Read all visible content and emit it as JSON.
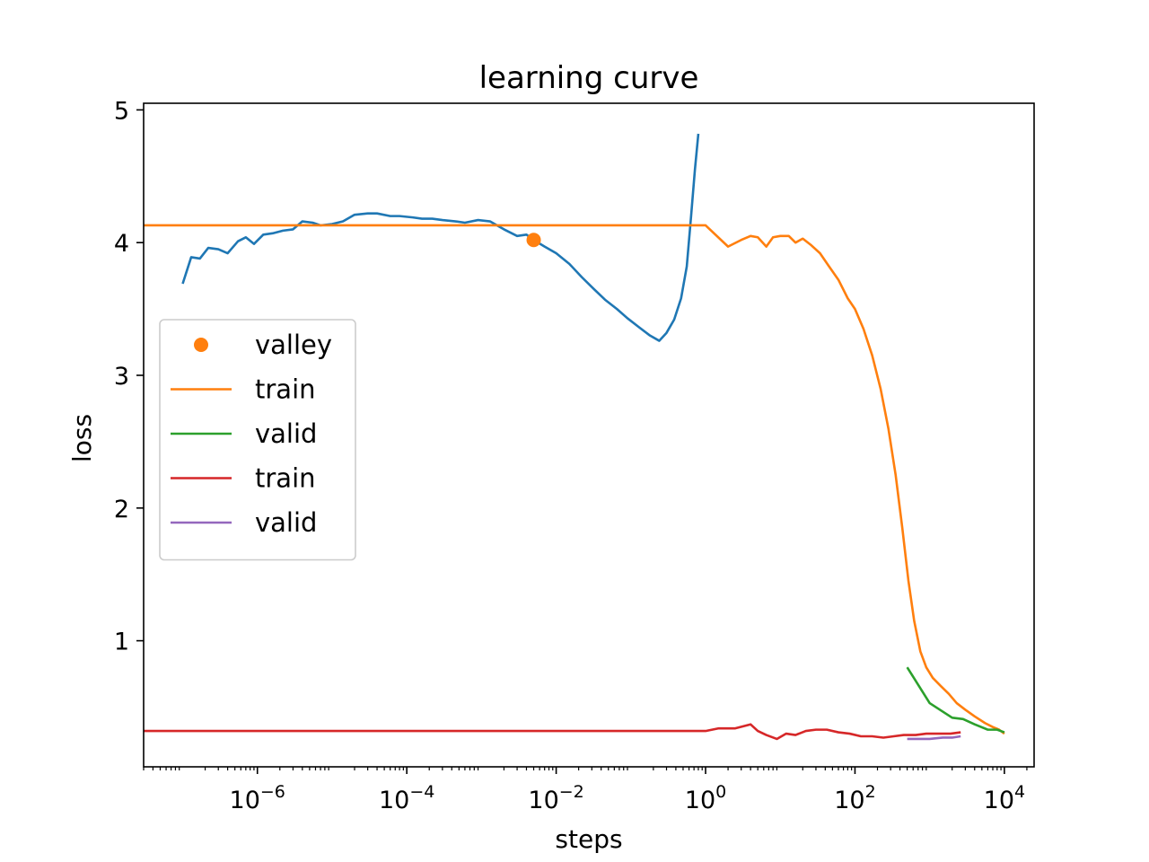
{
  "chart_data": {
    "type": "line",
    "title": "learning curve",
    "xlabel": "steps",
    "ylabel": "loss",
    "xscale": "log",
    "xlim": [
      3e-08,
      25000
    ],
    "ylim": [
      0.05,
      5.05
    ],
    "x_ticks": [
      {
        "value": 1e-06,
        "base": "10",
        "exp": "−6"
      },
      {
        "value": 0.0001,
        "base": "10",
        "exp": "−4"
      },
      {
        "value": 0.01,
        "base": "10",
        "exp": "−2"
      },
      {
        "value": 1,
        "base": "10",
        "exp": "0"
      },
      {
        "value": 100,
        "base": "10",
        "exp": "2"
      },
      {
        "value": 10000,
        "base": "10",
        "exp": "4"
      }
    ],
    "y_ticks": [
      {
        "value": 1,
        "label": "1"
      },
      {
        "value": 2,
        "label": "2"
      },
      {
        "value": 3,
        "label": "3"
      },
      {
        "value": 4,
        "label": "4"
      },
      {
        "value": 5,
        "label": "5"
      }
    ],
    "grid": false,
    "legend_position": "center-left",
    "series": [
      {
        "name": "",
        "kind": "line",
        "color": "#1f77b4",
        "points": [
          [
            1e-07,
            3.69
          ],
          [
            1.3e-07,
            3.89
          ],
          [
            1.7e-07,
            3.88
          ],
          [
            2.2e-07,
            3.96
          ],
          [
            3e-07,
            3.95
          ],
          [
            4e-07,
            3.92
          ],
          [
            5.5e-07,
            4.01
          ],
          [
            7e-07,
            4.04
          ],
          [
            9e-07,
            3.99
          ],
          [
            1.2e-06,
            4.06
          ],
          [
            1.6e-06,
            4.07
          ],
          [
            2.2e-06,
            4.09
          ],
          [
            3e-06,
            4.1
          ],
          [
            4e-06,
            4.16
          ],
          [
            5.5e-06,
            4.15
          ],
          [
            7e-06,
            4.13
          ],
          [
            1e-05,
            4.14
          ],
          [
            1.4e-05,
            4.16
          ],
          [
            2e-05,
            4.21
          ],
          [
            3e-05,
            4.22
          ],
          [
            4e-05,
            4.22
          ],
          [
            6e-05,
            4.2
          ],
          [
            8e-05,
            4.2
          ],
          [
            0.00012,
            4.19
          ],
          [
            0.00016,
            4.18
          ],
          [
            0.00022,
            4.18
          ],
          [
            0.0003,
            4.17
          ],
          [
            0.00045,
            4.16
          ],
          [
            0.0006,
            4.15
          ],
          [
            0.0009,
            4.17
          ],
          [
            0.0013,
            4.16
          ],
          [
            0.002,
            4.1
          ],
          [
            0.003,
            4.05
          ],
          [
            0.004,
            4.06
          ],
          [
            0.005,
            4.02
          ],
          [
            0.007,
            3.97
          ],
          [
            0.01,
            3.92
          ],
          [
            0.015,
            3.84
          ],
          [
            0.022,
            3.74
          ],
          [
            0.032,
            3.65
          ],
          [
            0.045,
            3.57
          ],
          [
            0.065,
            3.5
          ],
          [
            0.09,
            3.43
          ],
          [
            0.13,
            3.36
          ],
          [
            0.18,
            3.3
          ],
          [
            0.24,
            3.26
          ],
          [
            0.3,
            3.32
          ],
          [
            0.38,
            3.42
          ],
          [
            0.47,
            3.58
          ],
          [
            0.56,
            3.82
          ],
          [
            0.64,
            4.2
          ],
          [
            0.72,
            4.55
          ],
          [
            0.8,
            4.82
          ]
        ]
      },
      {
        "name": "valley",
        "kind": "marker",
        "color": "#ff7f0e",
        "points": [
          [
            0.005,
            4.02
          ]
        ]
      },
      {
        "name": "train",
        "kind": "line",
        "color": "#ff7f0e",
        "points": [
          [
            3e-08,
            4.13
          ],
          [
            1,
            4.13
          ],
          [
            2,
            3.97
          ],
          [
            3,
            4.02
          ],
          [
            4,
            4.05
          ],
          [
            5,
            4.04
          ],
          [
            6.5,
            3.97
          ],
          [
            8,
            4.04
          ],
          [
            10,
            4.05
          ],
          [
            13,
            4.05
          ],
          [
            16,
            4.0
          ],
          [
            20,
            4.03
          ],
          [
            26,
            3.98
          ],
          [
            34,
            3.92
          ],
          [
            45,
            3.82
          ],
          [
            60,
            3.72
          ],
          [
            80,
            3.58
          ],
          [
            100,
            3.5
          ],
          [
            130,
            3.35
          ],
          [
            170,
            3.15
          ],
          [
            220,
            2.9
          ],
          [
            280,
            2.6
          ],
          [
            350,
            2.25
          ],
          [
            430,
            1.85
          ],
          [
            520,
            1.45
          ],
          [
            620,
            1.15
          ],
          [
            750,
            0.92
          ],
          [
            900,
            0.8
          ],
          [
            1100,
            0.72
          ],
          [
            1400,
            0.66
          ],
          [
            1800,
            0.6
          ],
          [
            2300,
            0.53
          ],
          [
            3000,
            0.48
          ],
          [
            4000,
            0.43
          ],
          [
            5500,
            0.38
          ],
          [
            7000,
            0.35
          ],
          [
            8500,
            0.33
          ],
          [
            10000,
            0.3
          ]
        ]
      },
      {
        "name": "valid",
        "kind": "line",
        "color": "#2ca02c",
        "points": [
          [
            500,
            0.8
          ],
          [
            1000,
            0.53
          ],
          [
            2000,
            0.42
          ],
          [
            2800,
            0.41
          ],
          [
            4000,
            0.37
          ],
          [
            6000,
            0.33
          ],
          [
            8000,
            0.33
          ],
          [
            10000,
            0.31
          ]
        ]
      },
      {
        "name": "train",
        "kind": "line",
        "color": "#d62728",
        "points": [
          [
            3e-08,
            0.32
          ],
          [
            1,
            0.32
          ],
          [
            1.5,
            0.34
          ],
          [
            2.5,
            0.34
          ],
          [
            4,
            0.37
          ],
          [
            5,
            0.32
          ],
          [
            6.5,
            0.29
          ],
          [
            9,
            0.26
          ],
          [
            12,
            0.3
          ],
          [
            16,
            0.29
          ],
          [
            22,
            0.32
          ],
          [
            30,
            0.33
          ],
          [
            42,
            0.33
          ],
          [
            60,
            0.31
          ],
          [
            85,
            0.3
          ],
          [
            120,
            0.28
          ],
          [
            170,
            0.28
          ],
          [
            240,
            0.27
          ],
          [
            330,
            0.28
          ],
          [
            450,
            0.29
          ],
          [
            650,
            0.29
          ],
          [
            900,
            0.3
          ],
          [
            1300,
            0.3
          ],
          [
            1900,
            0.3
          ],
          [
            2600,
            0.31
          ]
        ]
      },
      {
        "name": "valid",
        "kind": "line",
        "color": "#9467bd",
        "points": [
          [
            500,
            0.26
          ],
          [
            1000,
            0.26
          ],
          [
            1500,
            0.27
          ],
          [
            2000,
            0.27
          ],
          [
            2600,
            0.28
          ]
        ]
      }
    ]
  }
}
